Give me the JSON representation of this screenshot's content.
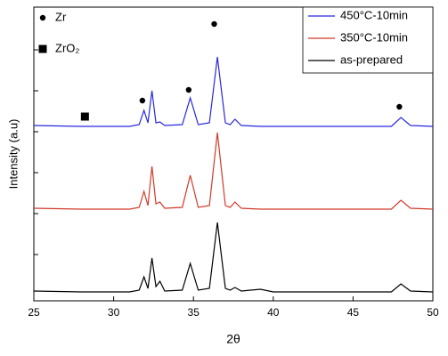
{
  "chart_data": {
    "type": "line",
    "x_label": "2θ",
    "y_label": "Intensity (a.u)",
    "x": [
      25,
      28,
      31,
      31.6,
      31.9,
      32.15,
      32.4,
      32.65,
      32.9,
      33.2,
      34.3,
      34.8,
      35.3,
      36,
      36.5,
      37,
      37.3,
      37.6,
      38,
      39.2,
      40,
      47.4,
      48,
      48.6,
      50
    ],
    "series": [
      {
        "name": "450°C-10min",
        "color": "#2828e0",
        "values": [
          197,
          196,
          196,
          198,
          214,
          200,
          236,
          200,
          201,
          197,
          198,
          228,
          198,
          200,
          274,
          200,
          198,
          204,
          197,
          196,
          196,
          196,
          206,
          197,
          196
        ]
      },
      {
        "name": "350°C-10min",
        "color": "#d03a28",
        "values": [
          104,
          103,
          103,
          105,
          123,
          107,
          151,
          109,
          111,
          104,
          105,
          141,
          105,
          107,
          189,
          107,
          105,
          111,
          104,
          103,
          103,
          103,
          113,
          104,
          103
        ]
      },
      {
        "name": "as-prepared",
        "color": "#000000",
        "values": [
          11,
          10,
          10,
          12,
          27,
          14,
          48,
          16,
          22,
          11,
          12,
          42,
          12,
          14,
          88,
          14,
          12,
          15,
          11,
          13,
          10,
          10,
          19,
          11,
          10
        ]
      }
    ],
    "markers": [
      {
        "name": "Zr",
        "symbol": "circle",
        "x": [
          31.8,
          34.7,
          36.3,
          47.9
        ],
        "y": [
          225,
          237,
          311,
          218
        ]
      },
      {
        "name": "ZrO₂",
        "symbol": "square",
        "x": [
          28.2
        ],
        "y": [
          207
        ]
      }
    ],
    "xlim": [
      25,
      50
    ],
    "xticks": [
      25,
      30,
      35,
      40,
      45,
      50
    ],
    "ylim": [
      0,
      330
    ],
    "yticks": [
      52,
      98,
      144,
      190,
      236,
      282
    ],
    "legend": "upper right"
  }
}
